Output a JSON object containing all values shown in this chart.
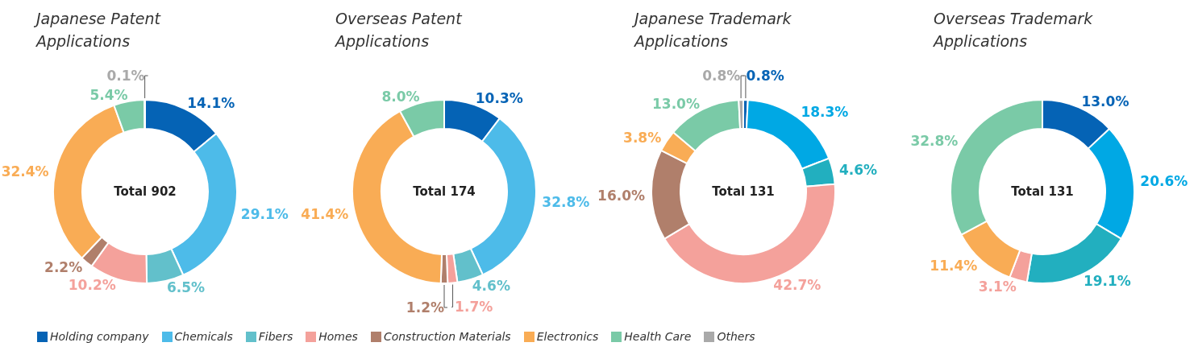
{
  "chart_data": [
    {
      "type": "donut",
      "title": "Japanese Patent Applications",
      "annotations": [
        "Total 902"
      ],
      "legend": "bottom",
      "categories": [
        "Holding company",
        "Chemicals",
        "Fibers",
        "Homes",
        "Construction Materials",
        "Electronics",
        "Health Care",
        "Others"
      ],
      "values": [
        14.1,
        29.1,
        6.5,
        10.2,
        2.2,
        32.4,
        5.4,
        0.1
      ],
      "value_labels": [
        "14.1%",
        "29.1%",
        "6.5%",
        "10.2%",
        "2.2%",
        "32.4%",
        "5.4%",
        "0.1%"
      ],
      "colors": [
        "#0563b5",
        "#4dbbe9",
        "#62c0cb",
        "#f4a19b",
        "#b07f6b",
        "#f9ac55",
        "#7acaa7",
        "#a9a9a9"
      ]
    },
    {
      "type": "donut",
      "title": "Overseas Patent Applications",
      "annotations": [
        "Total 174"
      ],
      "categories": [
        null,
        null,
        null,
        null,
        null,
        null,
        null
      ],
      "values": [
        10.3,
        32.8,
        4.6,
        1.7,
        1.2,
        41.4,
        8.0
      ],
      "value_labels": [
        "10.3%",
        "32.8%",
        "4.6%",
        "1.7%",
        "1.2%",
        "41.4%",
        "8.0%"
      ],
      "colors": [
        "#0563b5",
        "#4dbbe9",
        "#62c0cb",
        "#f4a19b",
        "#b07f6b",
        "#f9ac55",
        "#7acaa7"
      ]
    },
    {
      "type": "donut",
      "title": "Japanese Trademark Applications",
      "annotations": [
        "Total 131"
      ],
      "categories": [
        null,
        null,
        null,
        null,
        null,
        null,
        null,
        null
      ],
      "values": [
        0.8,
        18.3,
        4.6,
        42.7,
        16.0,
        3.8,
        13.0,
        0.8
      ],
      "value_labels": [
        "0.8%",
        "18.3%",
        "4.6%",
        "42.7%",
        "16.0%",
        "3.8%",
        "13.0%",
        "0.8%"
      ],
      "colors": [
        "#0563b5",
        "#00a8e4",
        "#22afbf",
        "#f4a19b",
        "#b07f6b",
        "#f9ac55",
        "#7acaa7",
        "#a9a9a9"
      ]
    },
    {
      "type": "donut",
      "title": "Overseas Trademark Applications",
      "annotations": [
        "Total 131"
      ],
      "categories": [
        null,
        null,
        null,
        null,
        null,
        null
      ],
      "values": [
        13.0,
        20.6,
        19.1,
        3.1,
        11.4,
        32.8
      ],
      "value_labels": [
        "13.0%",
        "20.6%",
        "19.1%",
        "3.1%",
        "11.4%",
        "32.8%"
      ],
      "colors": [
        "#0563b5",
        "#00a8e4",
        "#22afbf",
        "#f4a19b",
        "#f9ac55",
        "#7acaa7"
      ]
    }
  ]
}
